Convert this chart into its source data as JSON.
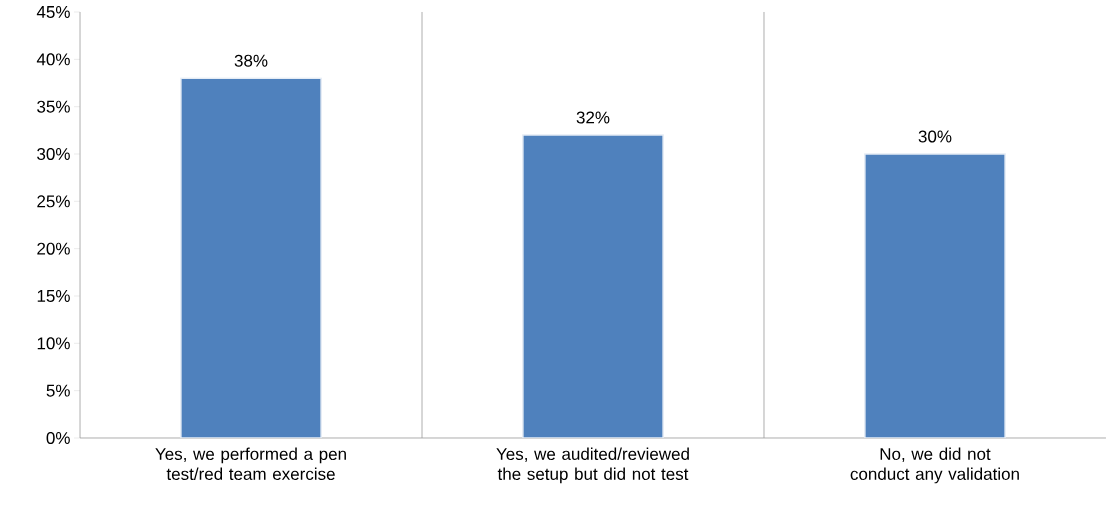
{
  "chart_data": {
    "type": "bar",
    "categories": [
      "Yes, we performed a pen test/red team exercise",
      "Yes, we audited/reviewed the setup but did not test",
      "No, we did not conduct any validation"
    ],
    "values": [
      38,
      32,
      30
    ],
    "value_labels": [
      "38%",
      "32%",
      "30%"
    ],
    "color": "#4f81bd",
    "ylim": [
      0,
      45
    ],
    "yticks": [
      {
        "value": 0,
        "label": "0%"
      },
      {
        "value": 5,
        "label": "5%"
      },
      {
        "value": 10,
        "label": "10%"
      },
      {
        "value": 15,
        "label": "15%"
      },
      {
        "value": 20,
        "label": "20%"
      },
      {
        "value": 25,
        "label": "25%"
      },
      {
        "value": 30,
        "label": "30%"
      },
      {
        "value": 35,
        "label": "35%"
      },
      {
        "value": 40,
        "label": "40%"
      },
      {
        "value": 45,
        "label": "45%"
      }
    ],
    "grid": "x"
  }
}
